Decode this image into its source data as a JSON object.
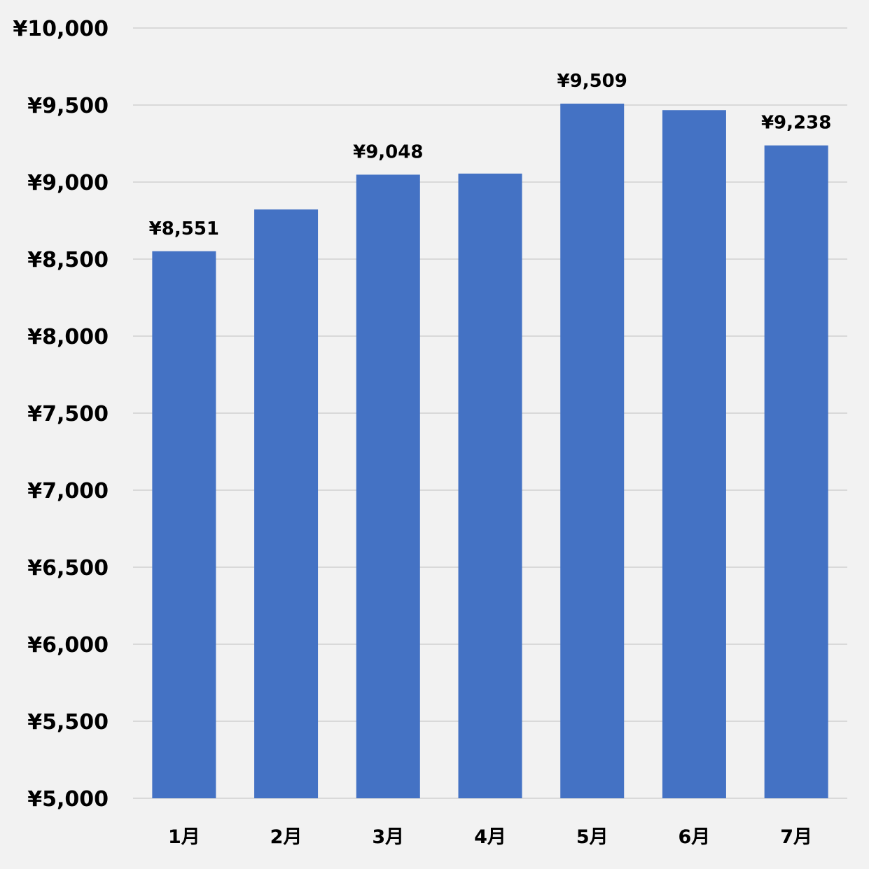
{
  "chart_data": {
    "type": "bar",
    "categories": [
      "1月",
      "2月",
      "3月",
      "4月",
      "5月",
      "6月",
      "7月"
    ],
    "values": [
      8551,
      8822,
      9048,
      9055,
      9509,
      9467,
      9238
    ],
    "data_labels": [
      "¥8,551",
      "",
      "¥9,048",
      "",
      "¥9,509",
      "",
      "¥9,238"
    ],
    "ylim": [
      5000,
      10000
    ],
    "y_ticks": [
      5000,
      5500,
      6000,
      6500,
      7000,
      7500,
      8000,
      8500,
      9000,
      9500,
      10000
    ],
    "y_tick_labels": [
      "¥5,000",
      "¥5,500",
      "¥6,000",
      "¥6,500",
      "¥7,000",
      "¥7,500",
      "¥8,000",
      "¥8,500",
      "¥9,000",
      "¥9,500",
      "¥10,000"
    ],
    "title": "",
    "xlabel": "",
    "ylabel": "",
    "grid": true,
    "legend": "none",
    "colors": {
      "bar": "#4472c4",
      "background": "#f2f2f2",
      "grid": "#d9d9d9"
    }
  }
}
